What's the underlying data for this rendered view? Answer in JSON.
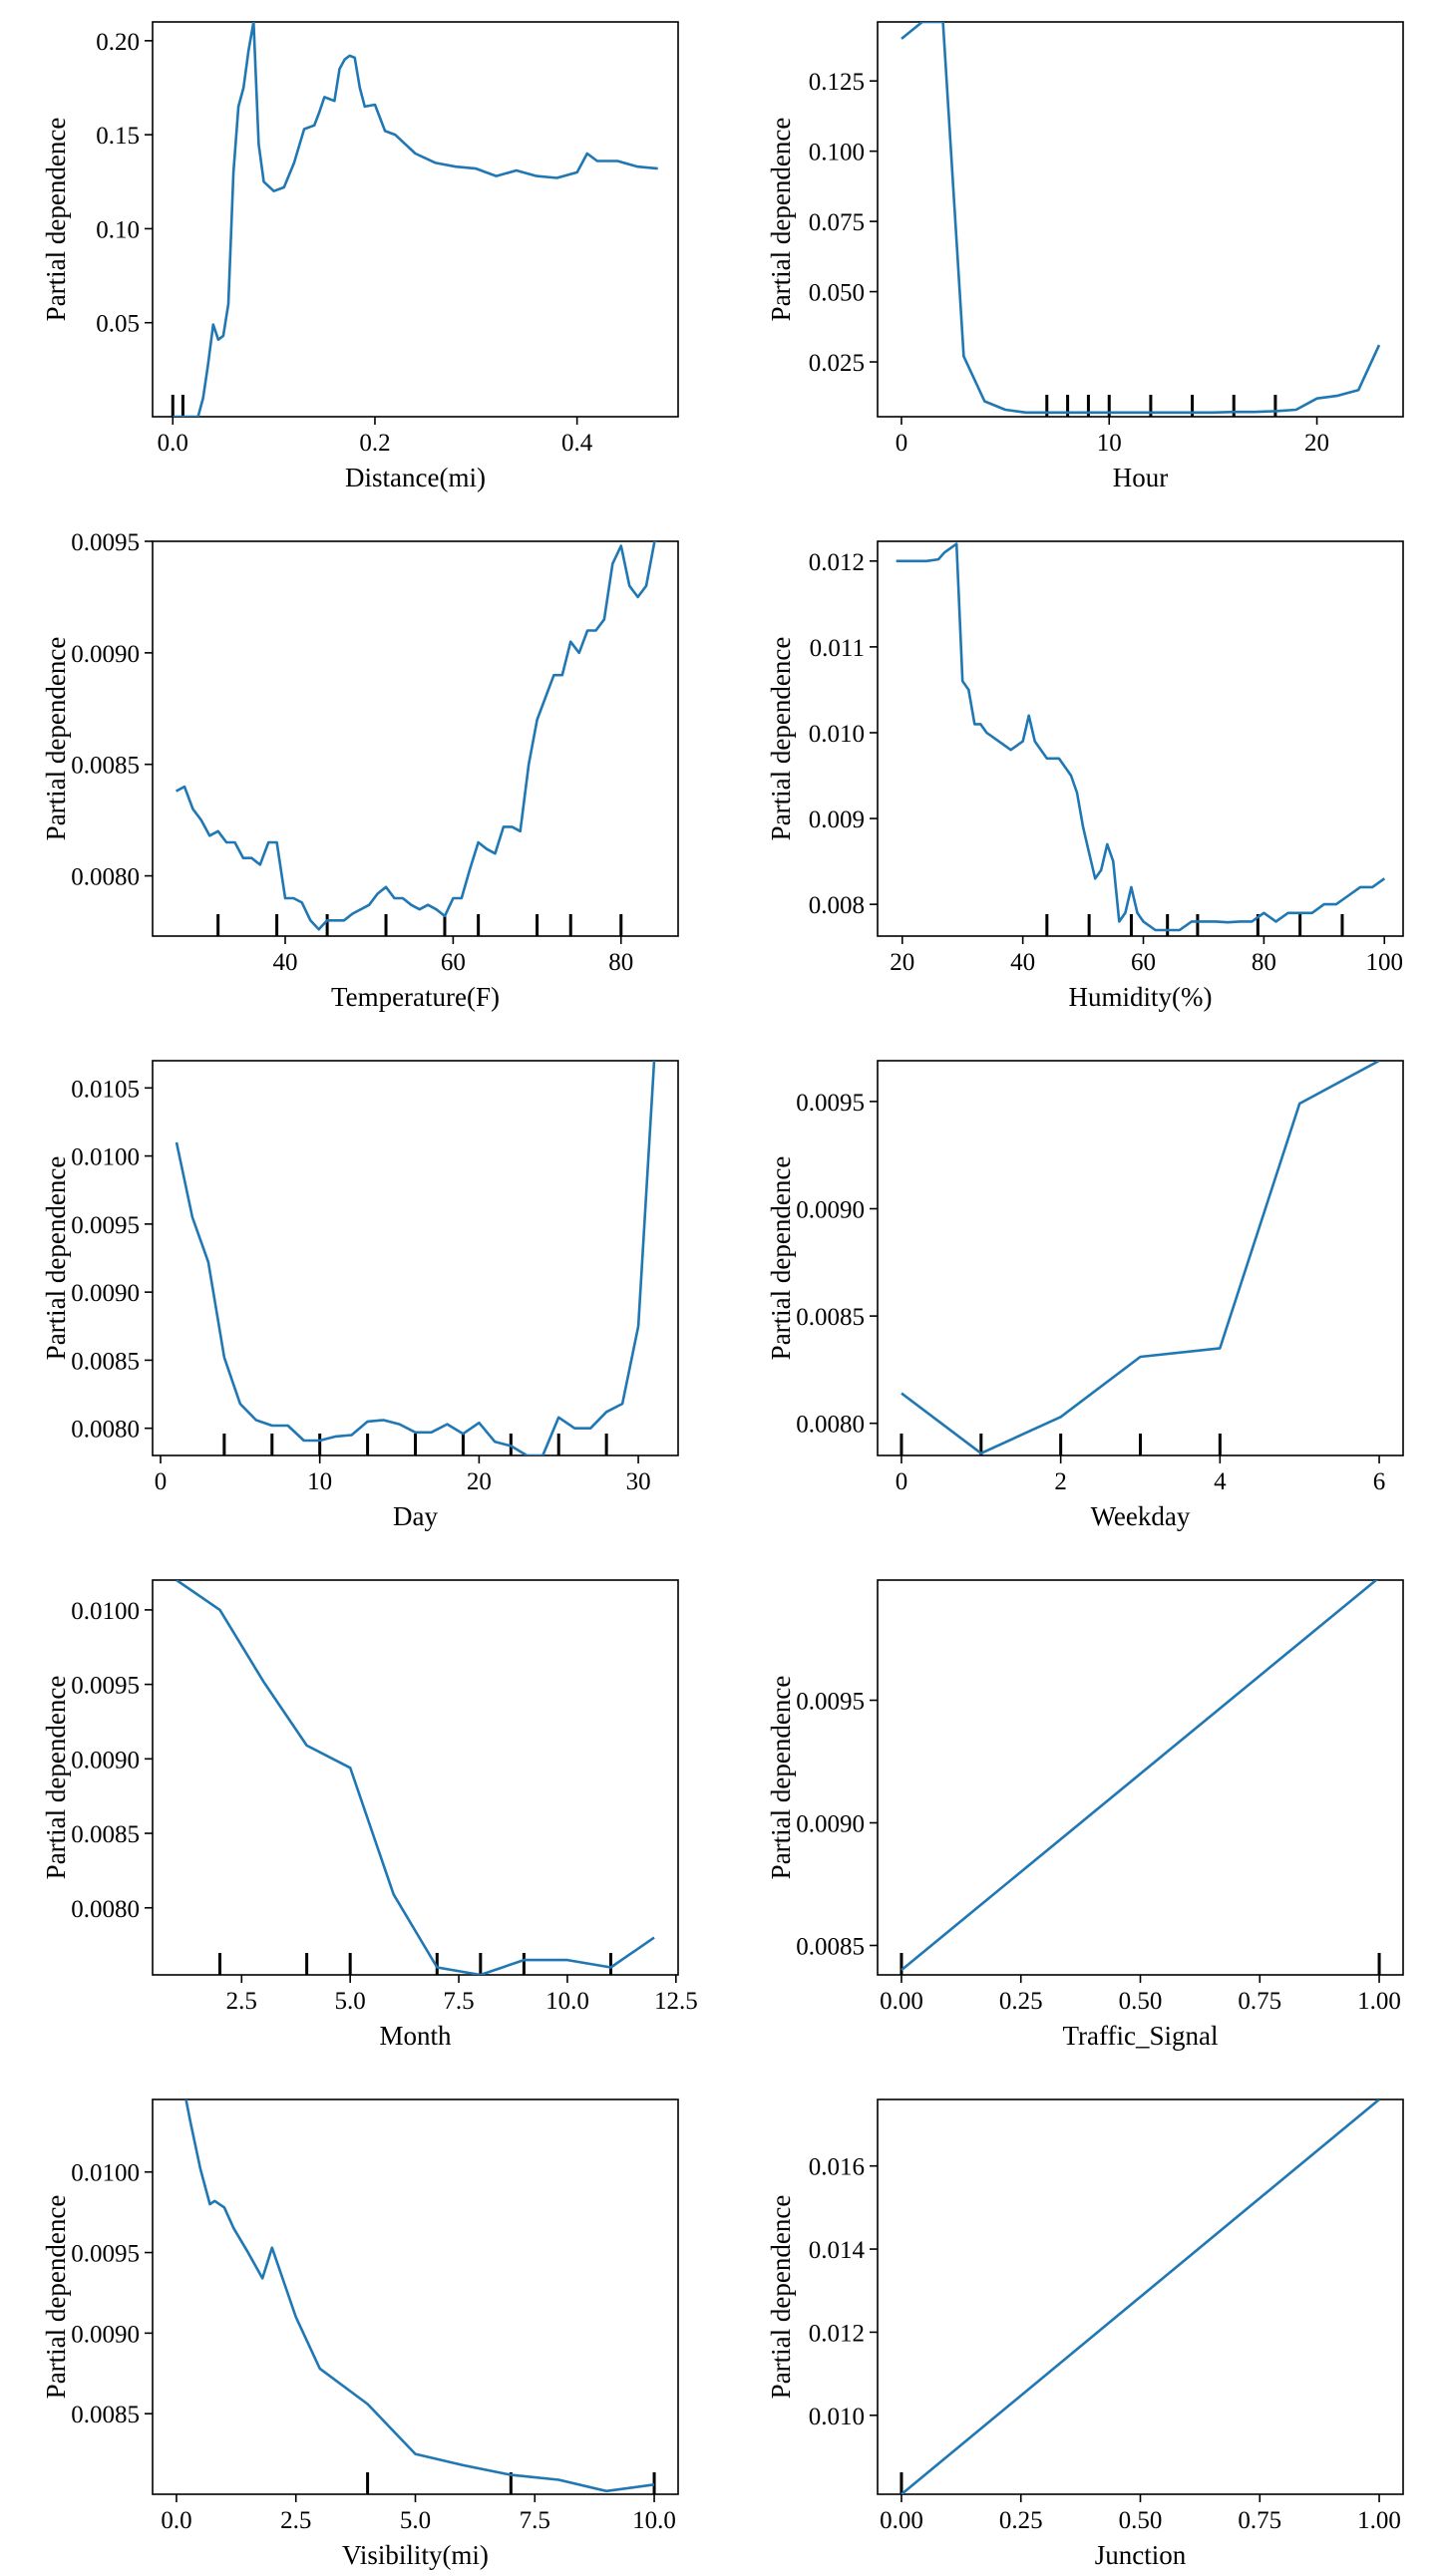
{
  "chart_data": [
    {
      "type": "line",
      "xlabel": "Distance(mi)",
      "ylabel": "Partial dependence",
      "xlim": [
        -0.02,
        0.5
      ],
      "ylim": [
        0.0,
        0.21
      ],
      "xticks": [
        0.0,
        0.2,
        0.4
      ],
      "xtick_labels": [
        "0.0",
        "0.2",
        "0.4"
      ],
      "yticks": [
        0.05,
        0.1,
        0.15,
        0.2
      ],
      "ytick_labels": [
        "0.05",
        "0.10",
        "0.15",
        "0.20"
      ],
      "rug": [
        0.0,
        0.01
      ],
      "x": [
        0.0,
        0.025,
        0.03,
        0.035,
        0.04,
        0.045,
        0.05,
        0.055,
        0.06,
        0.065,
        0.07,
        0.075,
        0.08,
        0.085,
        0.09,
        0.1,
        0.11,
        0.12,
        0.13,
        0.14,
        0.145,
        0.15,
        0.16,
        0.165,
        0.17,
        0.175,
        0.18,
        0.185,
        0.19,
        0.2,
        0.21,
        0.22,
        0.24,
        0.26,
        0.28,
        0.3,
        0.32,
        0.34,
        0.36,
        0.38,
        0.4,
        0.41,
        0.42,
        0.44,
        0.46,
        0.48
      ],
      "values": [
        0.0,
        0.0,
        0.01,
        0.028,
        0.049,
        0.041,
        0.043,
        0.06,
        0.13,
        0.165,
        0.175,
        0.195,
        0.21,
        0.145,
        0.125,
        0.12,
        0.122,
        0.135,
        0.153,
        0.155,
        0.162,
        0.17,
        0.168,
        0.185,
        0.19,
        0.192,
        0.191,
        0.175,
        0.165,
        0.166,
        0.152,
        0.15,
        0.14,
        0.135,
        0.133,
        0.132,
        0.128,
        0.131,
        0.128,
        0.127,
        0.13,
        0.14,
        0.136,
        0.136,
        0.133,
        0.132
      ]
    },
    {
      "type": "line",
      "xlabel": "Hour",
      "ylabel": "Partial dependence",
      "xlim": [
        -1.15,
        24.15
      ],
      "ylim": [
        0.0055,
        0.146
      ],
      "xticks": [
        0,
        10,
        20
      ],
      "xtick_labels": [
        "0",
        "10",
        "20"
      ],
      "yticks": [
        0.025,
        0.05,
        0.075,
        0.1,
        0.125
      ],
      "ytick_labels": [
        "0.025",
        "0.050",
        "0.075",
        "0.100",
        "0.125"
      ],
      "rug": [
        7,
        8,
        9,
        10,
        12,
        14,
        16,
        18
      ],
      "x": [
        0,
        1,
        2,
        3,
        4,
        5,
        6,
        7,
        8,
        9,
        10,
        11,
        12,
        13,
        14,
        15,
        16,
        17,
        18,
        19,
        20,
        21,
        22,
        23
      ],
      "values": [
        0.14,
        0.146,
        0.146,
        0.027,
        0.011,
        0.008,
        0.007,
        0.007,
        0.007,
        0.007,
        0.007,
        0.007,
        0.007,
        0.007,
        0.007,
        0.007,
        0.0072,
        0.0072,
        0.0075,
        0.008,
        0.012,
        0.013,
        0.015,
        0.031
      ]
    },
    {
      "type": "line",
      "xlabel": "Temperature(F)",
      "ylabel": "Partial dependence",
      "xlim": [
        24.2,
        86.8
      ],
      "ylim": [
        0.00773,
        0.0095
      ],
      "xticks": [
        40,
        60,
        80
      ],
      "xtick_labels": [
        "40",
        "60",
        "80"
      ],
      "yticks": [
        0.008,
        0.0085,
        0.009,
        0.0095
      ],
      "ytick_labels": [
        "0.0080",
        "0.0085",
        "0.0090",
        "0.0095"
      ],
      "rug": [
        32,
        39,
        45,
        52,
        59,
        63,
        70,
        74,
        80
      ],
      "x": [
        27,
        28,
        29,
        30,
        31,
        32,
        33,
        34,
        35,
        36,
        37,
        38,
        39,
        40,
        41,
        42,
        43,
        44,
        45,
        46,
        47,
        48,
        50,
        51,
        52,
        53,
        54,
        55,
        56,
        57,
        58,
        59,
        60,
        61,
        62,
        63,
        64,
        65,
        66,
        67,
        68,
        69,
        70,
        71,
        72,
        73,
        74,
        75,
        76,
        77,
        78,
        79,
        80,
        81,
        82,
        83,
        84,
        85
      ],
      "values": [
        0.00838,
        0.0084,
        0.0083,
        0.00825,
        0.00818,
        0.0082,
        0.00815,
        0.00815,
        0.00808,
        0.00808,
        0.00805,
        0.00815,
        0.00815,
        0.0079,
        0.0079,
        0.00788,
        0.0078,
        0.00776,
        0.0078,
        0.0078,
        0.0078,
        0.00783,
        0.00787,
        0.00792,
        0.00795,
        0.0079,
        0.0079,
        0.00787,
        0.00785,
        0.00787,
        0.00785,
        0.00782,
        0.0079,
        0.0079,
        0.00803,
        0.00815,
        0.00812,
        0.0081,
        0.00822,
        0.00822,
        0.0082,
        0.0085,
        0.0087,
        0.0088,
        0.0089,
        0.0089,
        0.00905,
        0.009,
        0.0091,
        0.0091,
        0.00915,
        0.0094,
        0.00948,
        0.0093,
        0.00925,
        0.0093,
        0.0095,
        0.00952
      ]
    },
    {
      "type": "line",
      "xlabel": "Humidity(%)",
      "ylabel": "Partial dependence",
      "xlim": [
        15.9,
        103.1
      ],
      "ylim": [
        0.00763,
        0.01223
      ],
      "xticks": [
        20,
        40,
        60,
        80,
        100
      ],
      "xtick_labels": [
        "20",
        "40",
        "60",
        "80",
        "100"
      ],
      "yticks": [
        0.008,
        0.009,
        0.01,
        0.011,
        0.012
      ],
      "ytick_labels": [
        "0.008",
        "0.009",
        "0.010",
        "0.011",
        "0.012"
      ],
      "rug": [
        44,
        51,
        58,
        64,
        69,
        79,
        86,
        93
      ],
      "x": [
        19,
        20,
        22,
        24,
        26,
        27,
        28,
        29,
        30,
        31,
        32,
        33,
        34,
        36,
        38,
        40,
        41,
        42,
        43,
        44,
        46,
        47,
        48,
        49,
        50,
        51,
        52,
        53,
        54,
        55,
        56,
        57,
        58,
        59,
        60,
        62,
        64,
        66,
        68,
        70,
        72,
        74,
        76,
        78,
        80,
        82,
        84,
        86,
        88,
        90,
        92,
        94,
        96,
        98,
        100
      ],
      "values": [
        0.012,
        0.012,
        0.012,
        0.012,
        0.01202,
        0.0121,
        0.01215,
        0.0122,
        0.0106,
        0.0105,
        0.0101,
        0.0101,
        0.01,
        0.0099,
        0.0098,
        0.0099,
        0.0102,
        0.0099,
        0.0098,
        0.0097,
        0.0097,
        0.0096,
        0.0095,
        0.0093,
        0.0089,
        0.0086,
        0.0083,
        0.0084,
        0.0087,
        0.0085,
        0.0078,
        0.0079,
        0.0082,
        0.0079,
        0.0078,
        0.0077,
        0.0077,
        0.0077,
        0.0078,
        0.0078,
        0.0078,
        0.00779,
        0.0078,
        0.0078,
        0.0079,
        0.0078,
        0.0079,
        0.0079,
        0.0079,
        0.008,
        0.008,
        0.0081,
        0.0082,
        0.0082,
        0.0083
      ]
    },
    {
      "type": "line",
      "xlabel": "Day",
      "ylabel": "Partial dependence",
      "xlim": [
        -0.5,
        32.5
      ],
      "ylim": [
        0.0078,
        0.0107
      ],
      "xticks": [
        0,
        10,
        20,
        30
      ],
      "xtick_labels": [
        "0",
        "10",
        "20",
        "30"
      ],
      "yticks": [
        0.008,
        0.0085,
        0.009,
        0.0095,
        0.01,
        0.0105
      ],
      "ytick_labels": [
        "0.0080",
        "0.0085",
        "0.0090",
        "0.0095",
        "0.0100",
        "0.0105"
      ],
      "rug": [
        4,
        7,
        10,
        13,
        16,
        19,
        22,
        25,
        28
      ],
      "x": [
        1,
        2,
        3,
        4,
        5,
        6,
        7,
        8,
        9,
        10,
        11,
        12,
        13,
        14,
        15,
        16,
        17,
        18,
        19,
        20,
        21,
        22,
        23,
        24,
        25,
        26,
        27,
        28,
        29,
        30,
        31
      ],
      "values": [
        0.0101,
        0.00955,
        0.00922,
        0.00852,
        0.00818,
        0.00806,
        0.00802,
        0.00802,
        0.00791,
        0.00791,
        0.00794,
        0.00795,
        0.00805,
        0.00806,
        0.00803,
        0.00797,
        0.00797,
        0.00803,
        0.00796,
        0.00804,
        0.0079,
        0.00787,
        0.0078,
        0.0078,
        0.00808,
        0.008,
        0.008,
        0.00812,
        0.00818,
        0.00875,
        0.0107
      ]
    },
    {
      "type": "line",
      "xlabel": "Weekday",
      "ylabel": "Partial dependence",
      "xlim": [
        -0.3,
        6.3
      ],
      "ylim": [
        0.00785,
        0.00969
      ],
      "xticks": [
        0,
        2,
        4,
        6
      ],
      "xtick_labels": [
        "0",
        "2",
        "4",
        "6"
      ],
      "yticks": [
        0.008,
        0.0085,
        0.009,
        0.0095
      ],
      "ytick_labels": [
        "0.0080",
        "0.0085",
        "0.0090",
        "0.0095"
      ],
      "rug": [
        0,
        1,
        2,
        3,
        4
      ],
      "x": [
        0,
        1,
        2,
        3,
        4,
        5,
        6
      ],
      "values": [
        0.00814,
        0.00786,
        0.00803,
        0.00831,
        0.00835,
        0.00949,
        0.00969
      ]
    },
    {
      "type": "line",
      "xlabel": "Month",
      "ylabel": "Partial dependence",
      "xlim": [
        0.45,
        12.55
      ],
      "ylim": [
        0.00755,
        0.0102
      ],
      "xticks": [
        2.5,
        5.0,
        7.5,
        10.0,
        12.5
      ],
      "xtick_labels": [
        "2.5",
        "5.0",
        "7.5",
        "10.0",
        "12.5"
      ],
      "yticks": [
        0.008,
        0.0085,
        0.009,
        0.0095,
        0.01
      ],
      "ytick_labels": [
        "0.0080",
        "0.0085",
        "0.0090",
        "0.0095",
        "0.0100"
      ],
      "rug": [
        2,
        4,
        5,
        7,
        8,
        9,
        11
      ],
      "x": [
        1,
        2,
        3,
        4,
        5,
        6,
        7,
        8,
        9,
        10,
        11,
        12
      ],
      "values": [
        0.0102,
        0.01,
        0.00952,
        0.00909,
        0.00894,
        0.00809,
        0.0076,
        0.00755,
        0.00765,
        0.00765,
        0.0076,
        0.0078
      ]
    },
    {
      "type": "line",
      "xlabel": "Traffic_Signal",
      "ylabel": "Partial dependence",
      "xlim": [
        -0.05,
        1.05
      ],
      "ylim": [
        0.00838,
        0.00999
      ],
      "xticks": [
        0.0,
        0.25,
        0.5,
        0.75,
        1.0
      ],
      "xtick_labels": [
        "0.00",
        "0.25",
        "0.50",
        "0.75",
        "1.00"
      ],
      "yticks": [
        0.0085,
        0.009,
        0.0095
      ],
      "ytick_labels": [
        "0.0085",
        "0.0090",
        "0.0095"
      ],
      "rug": [
        0,
        1
      ],
      "x": [
        0,
        1
      ],
      "values": [
        0.0084,
        0.01
      ]
    },
    {
      "type": "line",
      "xlabel": "Visibility(mi)",
      "ylabel": "Partial dependence",
      "xlim": [
        -0.5,
        10.5
      ],
      "ylim": [
        0.008,
        0.01045
      ],
      "xticks": [
        0.0,
        2.5,
        5.0,
        7.5,
        10.0
      ],
      "xtick_labels": [
        "0.0",
        "2.5",
        "5.0",
        "7.5",
        "10.0"
      ],
      "yticks": [
        0.0085,
        0.009,
        0.0095,
        0.01
      ],
      "ytick_labels": [
        "0.0085",
        "0.0090",
        "0.0095",
        "0.0100"
      ],
      "rug": [
        4,
        7,
        10
      ],
      "x": [
        0.2,
        0.3,
        0.5,
        0.7,
        0.8,
        1.0,
        1.2,
        1.5,
        1.8,
        2.0,
        2.5,
        3.0,
        4.0,
        5.0,
        6.0,
        7.0,
        8.0,
        9.0,
        10.0
      ],
      "values": [
        0.01045,
        0.0103,
        0.01002,
        0.0098,
        0.00982,
        0.00978,
        0.00965,
        0.0095,
        0.00934,
        0.00953,
        0.0091,
        0.00878,
        0.00856,
        0.00825,
        0.00818,
        0.00812,
        0.00809,
        0.00802,
        0.00806
      ]
    },
    {
      "type": "line",
      "xlabel": "Junction",
      "ylabel": "Partial dependence",
      "xlim": [
        -0.05,
        1.05
      ],
      "ylim": [
        0.0081,
        0.0176
      ],
      "xticks": [
        0.0,
        0.25,
        0.5,
        0.75,
        1.0
      ],
      "xtick_labels": [
        "0.00",
        "0.25",
        "0.50",
        "0.75",
        "1.00"
      ],
      "yticks": [
        0.01,
        0.012,
        0.014,
        0.016
      ],
      "ytick_labels": [
        "0.010",
        "0.012",
        "0.014",
        "0.016"
      ],
      "rug": [
        0
      ],
      "x": [
        0,
        1
      ],
      "values": [
        0.0081,
        0.0176
      ]
    }
  ]
}
